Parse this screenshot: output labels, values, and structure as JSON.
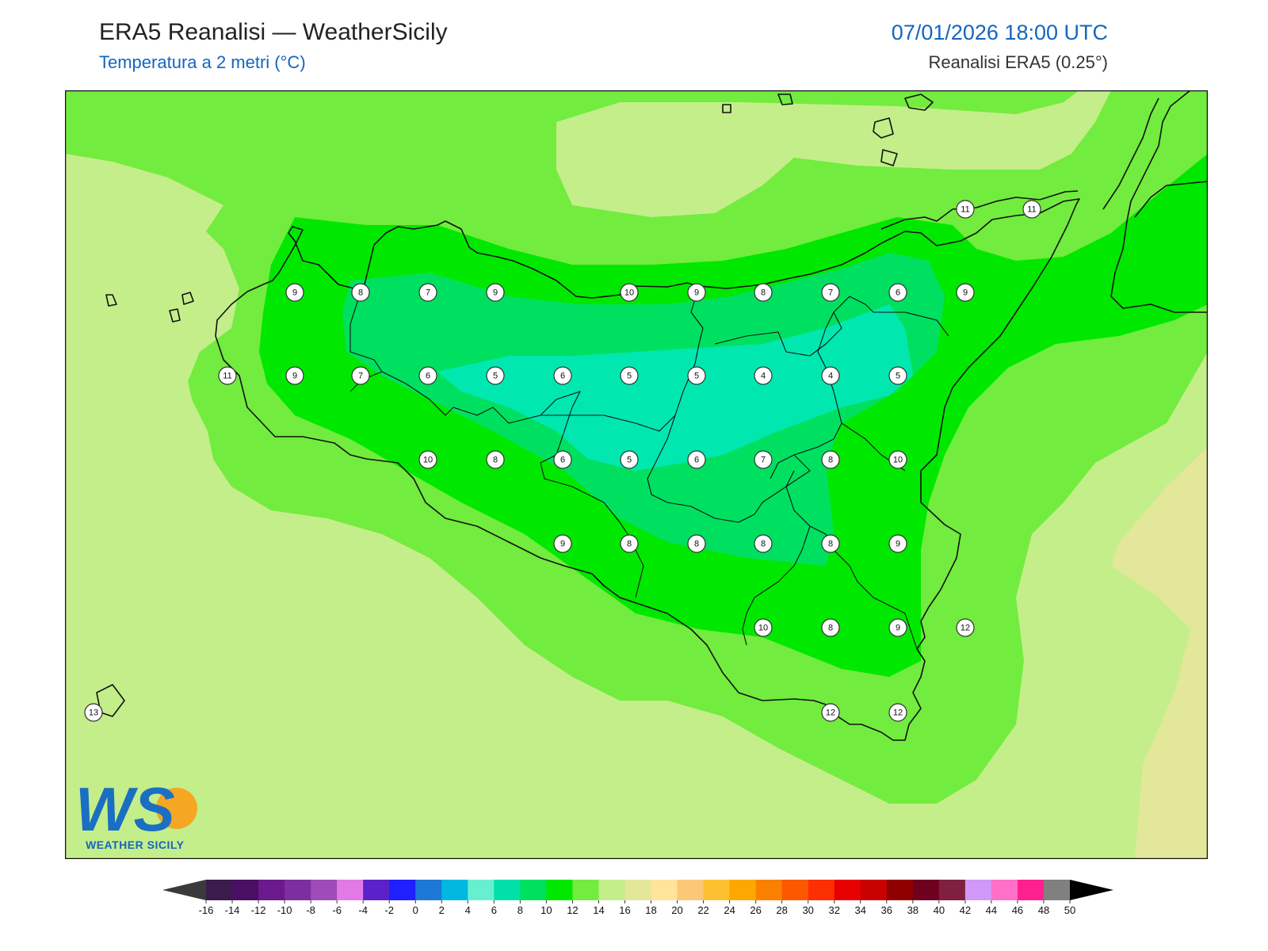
{
  "header": {
    "title": "ERA5 Reanalisi — WeatherSicily",
    "subtitle": "Temperatura a 2 metri (°C)",
    "datetime": "07/01/2026 18:00 UTC",
    "source": "Reanalisi ERA5 (0.25°)"
  },
  "logo": {
    "letters": "WS",
    "text": "WEATHER SICILY"
  },
  "station_values": [
    {
      "value": 11
    },
    {
      "value": 11
    },
    {
      "value": 9
    },
    {
      "value": 8
    },
    {
      "value": 7
    },
    {
      "value": 9
    },
    {
      "value": 10
    },
    {
      "value": 9
    },
    {
      "value": 8
    },
    {
      "value": 7
    },
    {
      "value": 6
    },
    {
      "value": 9
    },
    {
      "value": 11
    },
    {
      "value": 9
    },
    {
      "value": 7
    },
    {
      "value": 6
    },
    {
      "value": 5
    },
    {
      "value": 6
    },
    {
      "value": 5
    },
    {
      "value": 5
    },
    {
      "value": 4
    },
    {
      "value": 4
    },
    {
      "value": 5
    },
    {
      "value": 10
    },
    {
      "value": 8
    },
    {
      "value": 6
    },
    {
      "value": 5
    },
    {
      "value": 6
    },
    {
      "value": 7
    },
    {
      "value": 8
    },
    {
      "value": 10
    },
    {
      "value": 9
    },
    {
      "value": 8
    },
    {
      "value": 8
    },
    {
      "value": 8
    },
    {
      "value": 8
    },
    {
      "value": 9
    },
    {
      "value": 10
    },
    {
      "value": 8
    },
    {
      "value": 9
    },
    {
      "value": 12
    },
    {
      "value": 13
    },
    {
      "value": 12
    },
    {
      "value": 12
    }
  ],
  "colorbar": {
    "ticks": [
      "-16",
      "-14",
      "-12",
      "-10",
      "-8",
      "-6",
      "-4",
      "-2",
      "0",
      "2",
      "4",
      "6",
      "8",
      "10",
      "12",
      "14",
      "16",
      "18",
      "20",
      "22",
      "24",
      "26",
      "28",
      "30",
      "32",
      "34",
      "36",
      "38",
      "40",
      "42",
      "44",
      "46",
      "48",
      "50"
    ],
    "colors": [
      "#3b1b4c",
      "#4a0f63",
      "#6a1a8a",
      "#7d2ea0",
      "#a04cb8",
      "#e27ae6",
      "#5a22c8",
      "#1f1fff",
      "#1e78d8",
      "#00b8e0",
      "#66f0d0",
      "#00e0a8",
      "#00e060",
      "#00e800",
      "#72ec3e",
      "#c4ee8a",
      "#e2e79a",
      "#ffe49a",
      "#fcc878",
      "#fcc030",
      "#fca800",
      "#fc8000",
      "#fc5800",
      "#fc3000",
      "#e80000",
      "#c80000",
      "#900000",
      "#700020",
      "#802040",
      "#d098f8",
      "#ff70c8",
      "#ff2090",
      "#808080",
      "#404040"
    ],
    "under_color": "#3a3a3a",
    "over_color": "#000000"
  },
  "legend_levels": {
    "c4": "#00e8b0",
    "c6": "#00e060",
    "c8": "#00e800",
    "c10": "#72ec3e",
    "c12": "#c4ee8a",
    "c14": "#e2e79a"
  }
}
